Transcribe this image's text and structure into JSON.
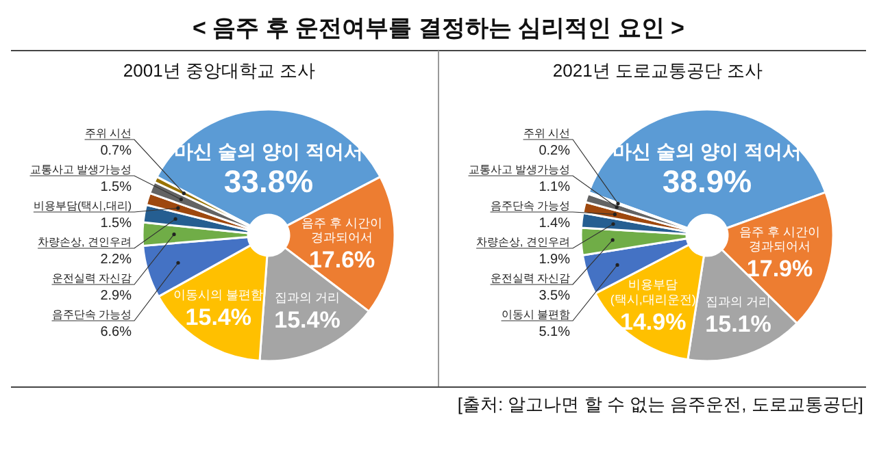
{
  "chart_data": [
    {
      "type": "donut",
      "title": "< 음주 후 운전여부를 결정하는 심리적인 요인 >",
      "subtitle": "2001년 중앙대학교 조사",
      "categories": [
        "마신 술의 양이 적어서",
        "음주 후 시간이\n경과되어서",
        "집과의 거리",
        "이동시의 불편함",
        "음주단속 가능성",
        "운전실력 자신감",
        "차량손상, 견인우려",
        "비용부담(택시,대리)",
        "교통사고 발생가능성",
        "주위 시선"
      ],
      "values": [
        33.8,
        17.6,
        15.4,
        15.4,
        6.6,
        2.9,
        2.2,
        1.5,
        1.5,
        0.7
      ],
      "value_labels": [
        "33.8%",
        "17.6%",
        "15.4%",
        "15.4%",
        "6.6%",
        "2.9%",
        "2.2%",
        "1.5%",
        "1.5%",
        "0.7%"
      ],
      "colors": [
        "#5b9bd5",
        "#ed7d31",
        "#a5a5a5",
        "#ffc000",
        "#4472c4",
        "#70ad47",
        "#255e91",
        "#9e480e",
        "#636363",
        "#997300"
      ]
    },
    {
      "type": "donut",
      "subtitle": "2021년 도로교통공단 조사",
      "categories": [
        "마신 술의 양이 적어서",
        "음주 후 시간이\n경과되어서",
        "집과의 거리",
        "비용부담\n(택시,대리운전)",
        "이동시 불편함",
        "운전실력 자신감",
        "차량손상, 견인우려",
        "음주단속 가능성",
        "교통사고 발생가능성",
        "주위 시선"
      ],
      "values": [
        38.9,
        17.9,
        15.1,
        14.9,
        5.1,
        3.5,
        1.9,
        1.4,
        1.1,
        0.2
      ],
      "value_labels": [
        "38.9%",
        "17.9%",
        "15.1%",
        "14.9%",
        "5.1%",
        "3.5%",
        "1.9%",
        "1.4%",
        "1.1%",
        "0.2%"
      ],
      "colors": [
        "#5b9bd5",
        "#ed7d31",
        "#a5a5a5",
        "#ffc000",
        "#4472c4",
        "#70ad47",
        "#255e91",
        "#9e480e",
        "#636363",
        "#997300"
      ],
      "annotations": [
        "[출처: 알고나면 할 수 없는 음주운전, 도로교통공단]"
      ]
    }
  ]
}
